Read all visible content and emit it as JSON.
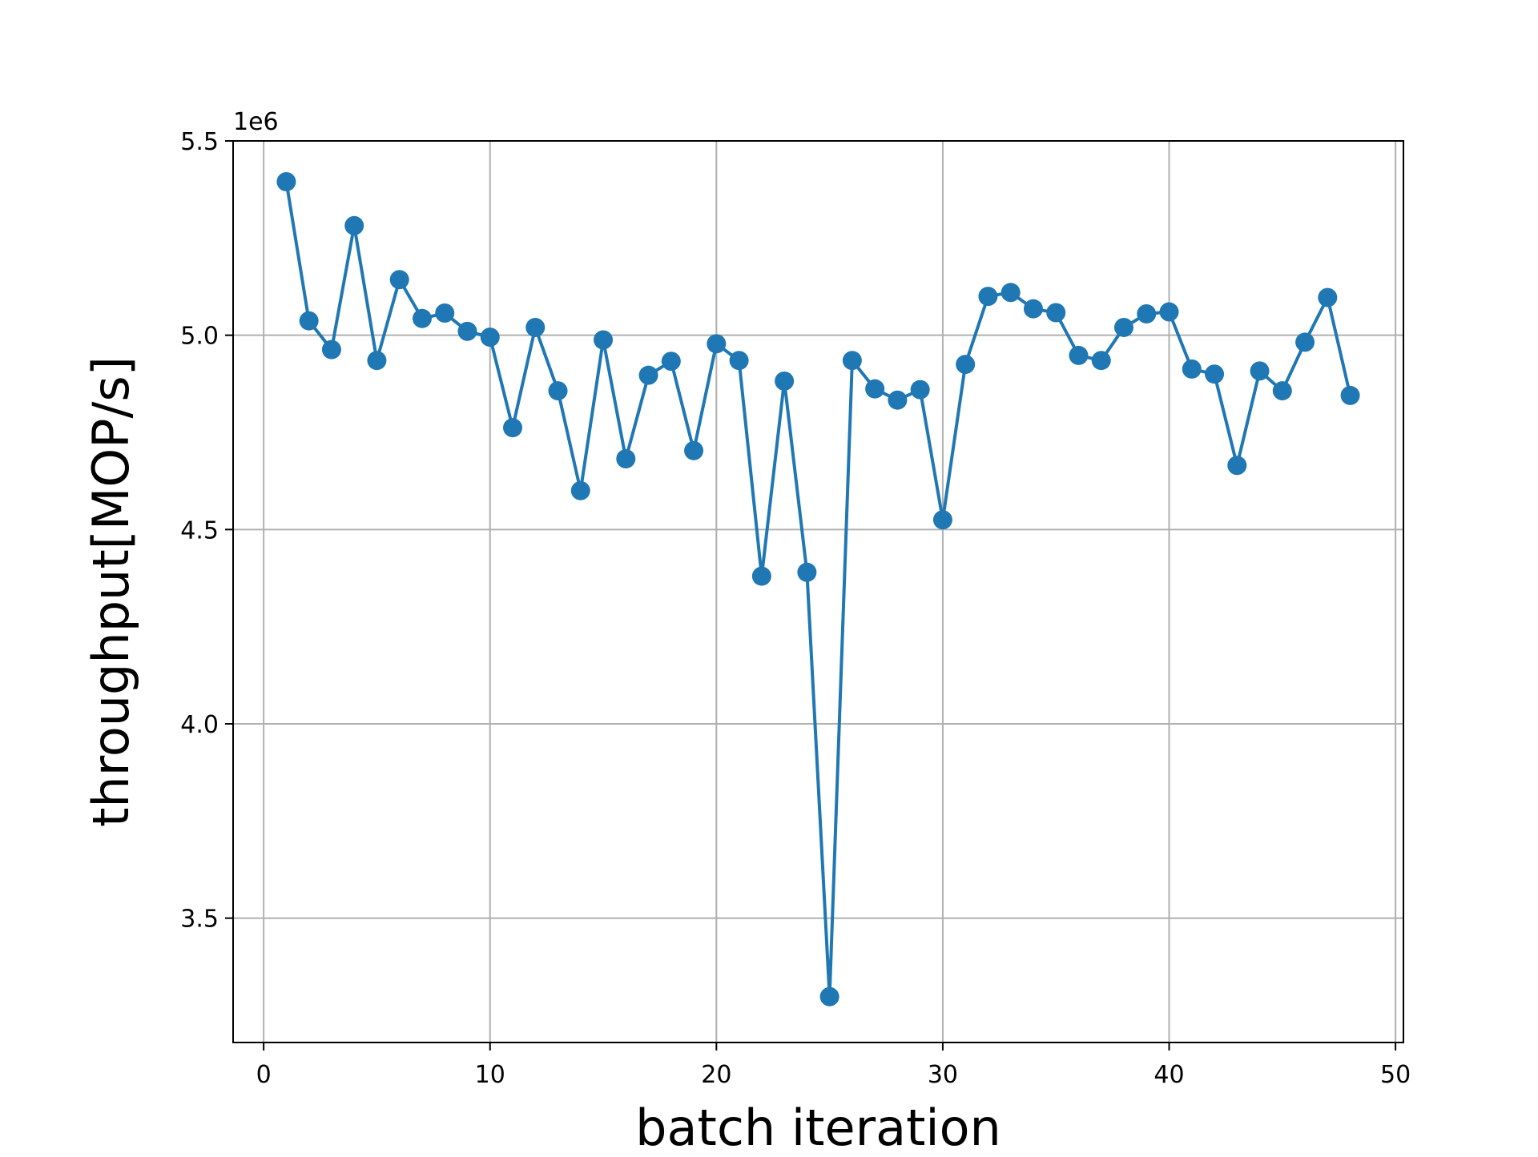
{
  "chart_data": {
    "type": "line",
    "xlabel": "batch iteration",
    "ylabel": "throughput[MOP/s]",
    "y_offset_label": "1e6",
    "xlim": [
      -1.35,
      50.35
    ],
    "ylim": [
      3.18,
      5.5
    ],
    "x_ticks": [
      0,
      10,
      20,
      30,
      40,
      50
    ],
    "x_tick_labels": [
      "0",
      "10",
      "20",
      "30",
      "40",
      "50"
    ],
    "y_ticks": [
      3.5,
      4.0,
      4.5,
      5.0,
      5.5
    ],
    "y_tick_labels": [
      "3.5",
      "4.0",
      "4.5",
      "5.0",
      "5.5"
    ],
    "grid": true,
    "marker": "circle",
    "color": "#1f77b4",
    "series": [
      {
        "x": [
          1,
          2,
          3,
          4,
          5,
          6,
          7,
          8,
          9,
          10,
          11,
          12,
          13,
          14,
          15,
          16,
          17,
          18,
          19,
          20,
          21,
          22,
          23,
          24,
          25,
          26,
          27,
          28,
          29,
          30,
          31,
          32,
          33,
          34,
          35,
          36,
          37,
          38,
          39,
          40,
          41,
          42,
          43,
          44,
          45,
          46,
          47,
          48
        ],
        "values": [
          5.395,
          5.037,
          4.963,
          5.282,
          4.935,
          5.143,
          5.043,
          5.057,
          5.01,
          4.995,
          4.762,
          5.02,
          4.857,
          4.6,
          4.988,
          4.682,
          4.897,
          4.933,
          4.703,
          4.978,
          4.935,
          4.38,
          4.882,
          4.39,
          3.298,
          4.935,
          4.862,
          4.833,
          4.86,
          4.525,
          4.925,
          5.1,
          5.11,
          5.068,
          5.058,
          4.948,
          4.935,
          5.02,
          5.055,
          5.06,
          4.913,
          4.9,
          4.665,
          4.908,
          4.857,
          4.982,
          5.097,
          4.845
        ]
      }
    ]
  }
}
